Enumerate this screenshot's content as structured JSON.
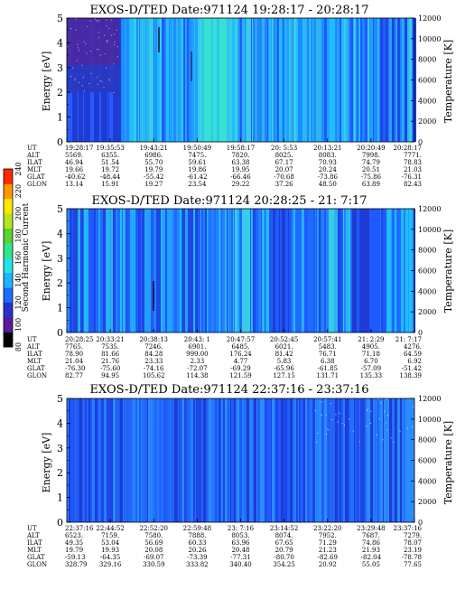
{
  "figure": {
    "colorbar": {
      "label": "Second Harmonic Current",
      "ticks": [
        "80",
        "100",
        "120",
        "140",
        "160",
        "180",
        "200",
        "220",
        "240"
      ],
      "colors": [
        "#000000",
        "#5a1a9a",
        "#2a32c8",
        "#1e6cff",
        "#1eb4ff",
        "#1ee6e6",
        "#32e68c",
        "#5ad232",
        "#b4e61e",
        "#ffe600",
        "#ff9600",
        "#ff2800"
      ]
    }
  },
  "chart_data": [
    {
      "type": "heatmap",
      "title": "EXOS-D/TED   Date:971124   19:28:17 - 20:28:17",
      "ylabel": "Energy [eV]",
      "ylabel_right": "Temperature [K]",
      "y_ticks": [
        "0",
        "1",
        "2",
        "3",
        "4",
        "5"
      ],
      "y_right_ticks": [
        "0",
        "2000",
        "4000",
        "6000",
        "8000",
        "10000",
        "12000"
      ],
      "ylim": [
        0,
        5
      ],
      "ylim_right": [
        0,
        12000
      ],
      "table_rows": [
        "UT",
        "ALT",
        "ILAT",
        "MLT",
        "GLAT",
        "GLON"
      ],
      "table": [
        [
          "19:28:17",
          "19:35:53",
          "19:43:21",
          "19:50:49",
          "19:58:17",
          "20: 5:53",
          "20:13:21",
          "20:20:49",
          "20:28:17"
        ],
        [
          "5569.",
          "6355.",
          "6986.",
          "7475.",
          "7820.",
          "8025.",
          "8083.",
          "7998.",
          "7771."
        ],
        [
          "46.94",
          "51.54",
          "55.70",
          "59.61",
          "63.38",
          "67.17",
          "70.93",
          "74.79",
          "78.83"
        ],
        [
          "19.66",
          "19.72",
          "19.79",
          "19.86",
          "19.95",
          "20.07",
          "20.24",
          "20.51",
          "21.03"
        ],
        [
          "-40.62",
          "-48.44",
          "-55.42",
          "-61.42",
          "-66.46",
          "-70.68",
          "-73.86",
          "-75.86",
          "-76.31"
        ],
        [
          "13.14",
          "15.91",
          "19.27",
          "23.54",
          "29.22",
          "37.26",
          "48.50",
          "63.89",
          "82.43"
        ]
      ]
    },
    {
      "type": "heatmap",
      "title": "EXOS-D/TED   Date:971124   20:28:25 - 21: 7:17",
      "ylabel": "Energy [eV]",
      "ylabel_right": "Temperature [K]",
      "y_ticks": [
        "0",
        "1",
        "2",
        "3",
        "4",
        "5"
      ],
      "y_right_ticks": [
        "0",
        "2000",
        "4000",
        "6000",
        "8000",
        "10000",
        "12000"
      ],
      "ylim": [
        0,
        5
      ],
      "ylim_right": [
        0,
        12000
      ],
      "table_rows": [
        "UT",
        "ALT",
        "ILAT",
        "MLT",
        "GLAT",
        "GLON"
      ],
      "table": [
        [
          "20:28:25",
          "20:33:21",
          "20:38:13",
          "20:43: 1",
          "20:47:57",
          "20:52:45",
          "20:57:41",
          "21: 2:29",
          "21: 7:17"
        ],
        [
          "7765.",
          "7535.",
          "7246.",
          "6901.",
          "6485.",
          "6021.",
          "5483.",
          "4905.",
          "4276."
        ],
        [
          "78.90",
          "81.66",
          "84.28",
          "999.00",
          "176.24",
          "81.42",
          "76.71",
          "71.18",
          "64.59"
        ],
        [
          "21.04",
          "21.76",
          "23.33",
          "2.33",
          "4.77",
          "5.83",
          "6.38",
          "6.70",
          "6.92"
        ],
        [
          "-76.30",
          "-75.60",
          "-74.16",
          "-72.07",
          "-69.29",
          "-65.96",
          "-61.85",
          "-57.09",
          "-51.42"
        ],
        [
          "82.77",
          "94.95",
          "105.62",
          "114.38",
          "121.59",
          "127.15",
          "131.71",
          "135.33",
          "138.39"
        ]
      ]
    },
    {
      "type": "heatmap",
      "title": "EXOS-D/TED   Date:971124   22:37:16 - 23:37:16",
      "ylabel": "Energy [eV]",
      "ylabel_right": "Temperature [K]",
      "y_ticks": [
        "0",
        "1",
        "2",
        "3",
        "4",
        "5"
      ],
      "y_right_ticks": [
        "0",
        "2000",
        "4000",
        "6000",
        "8000",
        "10000",
        "12000"
      ],
      "ylim": [
        0,
        5
      ],
      "ylim_right": [
        0,
        12000
      ],
      "table_rows": [
        "UT",
        "ALT",
        "ILAT",
        "MLT",
        "GLAT",
        "GLON"
      ],
      "table": [
        [
          "22:37:16",
          "22:44:52",
          "22:52:20",
          "22:59:48",
          "23: 7:16",
          "23:14:52",
          "23:22:20",
          "23:29:48",
          "23:37:16"
        ],
        [
          "6523.",
          "7159.",
          "7580.",
          "7888.",
          "8053.",
          "8074.",
          "7952.",
          "7687.",
          "7279."
        ],
        [
          "49.35",
          "53.04",
          "56.69",
          "60.33",
          "63.96",
          "67.65",
          "71.29",
          "74.86",
          "78.07"
        ],
        [
          "19.79",
          "19.93",
          "20.08",
          "20.26",
          "20.48",
          "20.79",
          "21.23",
          "21.93",
          "23.19"
        ],
        [
          "-59.13",
          "-64.35",
          "-69.07",
          "-73.39",
          "-77.31",
          "-80.70",
          "-82.69",
          "-82.04",
          "-78.78"
        ],
        [
          "328.79",
          "329.16",
          "330.59",
          "333.82",
          "340.40",
          "354.25",
          "20.92",
          "55.05",
          "77.65"
        ]
      ]
    }
  ]
}
